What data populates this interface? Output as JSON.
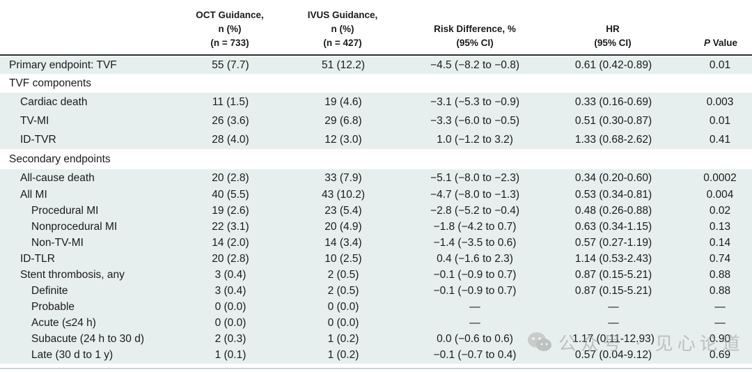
{
  "header": {
    "oct": [
      "OCT Guidance,",
      "n (%)",
      "(n = 733)"
    ],
    "ivus": [
      "IVUS Guidance,",
      "n (%)",
      "(n = 427)"
    ],
    "risk": [
      "Risk Difference, %",
      "(95% CI)"
    ],
    "hr": [
      "HR",
      "(95% CI)"
    ],
    "p": "P Value"
  },
  "rows": [
    {
      "label": "Primary endpoint: TVF",
      "indent": 0,
      "oct": "55 (7.7)",
      "ivus": "51 (12.2)",
      "risk": "−4.5 (−8.2 to −0.8)",
      "hr": "0.61 (0.42-0.89)",
      "p": "0.01",
      "shaded": true
    },
    {
      "label": "TVF components",
      "indent": 0,
      "oct": "",
      "ivus": "",
      "risk": "",
      "hr": "",
      "p": "",
      "shaded": false
    },
    {
      "label": "Cardiac death",
      "indent": 1,
      "oct": "11 (1.5)",
      "ivus": "19 (4.6)",
      "risk": "−3.1 (−5.3 to −0.9)",
      "hr": "0.33 (0.16-0.69)",
      "p": "0.003",
      "shaded": true
    },
    {
      "label": "TV-MI",
      "indent": 1,
      "oct": "26 (3.6)",
      "ivus": "29 (6.8)",
      "risk": "−3.3 (−6.0 to −0.5)",
      "hr": "0.51 (0.30-0.87)",
      "p": "0.01",
      "shaded": true
    },
    {
      "label": "ID-TVR",
      "indent": 1,
      "oct": "28 (4.0)",
      "ivus": "12 (3.0)",
      "risk": "1.0 (−1.2 to 3.2)",
      "hr": "1.33 (0.68-2.62)",
      "p": "0.41",
      "shaded": true
    },
    {
      "label": "Secondary endpoints",
      "indent": 0,
      "oct": "",
      "ivus": "",
      "risk": "",
      "hr": "",
      "p": "",
      "shaded": false
    },
    {
      "label": "All-cause death",
      "indent": 1,
      "oct": "20 (2.8)",
      "ivus": "33 (7.9)",
      "risk": "−5.1 (−8.0 to −2.3)",
      "hr": "0.34 (0.20-0.60)",
      "p": "0.0002",
      "shaded": true
    },
    {
      "label": "All MI",
      "indent": 1,
      "oct": "40 (5.5)",
      "ivus": "43 (10.2)",
      "risk": "−4.7 (−8.0 to −1.3)",
      "hr": "0.53 (0.34-0.81)",
      "p": "0.004",
      "shaded": true
    },
    {
      "label": "Procedural MI",
      "indent": 2,
      "oct": "19 (2.6)",
      "ivus": "23 (5.4)",
      "risk": "−2.8 (−5.2 to −0.4)",
      "hr": "0.48 (0.26-0.88)",
      "p": "0.02",
      "shaded": true
    },
    {
      "label": "Nonprocedural MI",
      "indent": 2,
      "oct": "22 (3.1)",
      "ivus": "20 (4.9)",
      "risk": "−1.8 (−4.2 to 0.7)",
      "hr": "0.63 (0.34-1.15)",
      "p": "0.13",
      "shaded": true
    },
    {
      "label": "Non-TV-MI",
      "indent": 2,
      "oct": "14 (2.0)",
      "ivus": "14 (3.4)",
      "risk": "−1.4 (−3.5 to 0.6)",
      "hr": "0.57 (0.27-1.19)",
      "p": "0.14",
      "shaded": true
    },
    {
      "label": "ID-TLR",
      "indent": 1,
      "oct": "20 (2.8)",
      "ivus": "10 (2.5)",
      "risk": "0.4 (−1.6 to 2.3)",
      "hr": "1.14 (0.53-2.43)",
      "p": "0.74",
      "shaded": true
    },
    {
      "label": "Stent thrombosis, any",
      "indent": 1,
      "oct": "3 (0.4)",
      "ivus": "2 (0.5)",
      "risk": "−0.1 (−0.9 to 0.7)",
      "hr": "0.87 (0.15-5.21)",
      "p": "0.88",
      "shaded": true
    },
    {
      "label": "Definite",
      "indent": 2,
      "oct": "3 (0.4)",
      "ivus": "2 (0.5)",
      "risk": "−0.1 (−0.9 to 0.7)",
      "hr": "0.87 (0.15-5.21)",
      "p": "0.88",
      "shaded": true
    },
    {
      "label": "Probable",
      "indent": 2,
      "oct": "0 (0.0)",
      "ivus": "0 (0.0)",
      "risk": "—",
      "hr": "—",
      "p": "—",
      "shaded": true
    },
    {
      "label": "Acute (≤24 h)",
      "indent": 2,
      "oct": "0 (0.0)",
      "ivus": "0 (0.0)",
      "risk": "—",
      "hr": "—",
      "p": "—",
      "shaded": true
    },
    {
      "label": "Subacute (24 h to 30 d)",
      "indent": 2,
      "oct": "2 (0.3)",
      "ivus": "1 (0.2)",
      "risk": "0.0 (−0.6 to 0.6)",
      "hr": "1.17 (0.11-12.93)",
      "p": "0.90",
      "shaded": true
    },
    {
      "label": "Late (30 d to 1 y)",
      "indent": 2,
      "oct": "1 (0.1)",
      "ivus": "1 (0.2)",
      "risk": "−0.1 (−0.7 to 0.4)",
      "hr": "0.57 (0.04-9.12)",
      "p": "0.69",
      "shaded": true
    }
  ],
  "watermark": "公众号 · 见心论道",
  "colors": {
    "shade": "#e6efee",
    "rule": "#2c2c2c",
    "text": "#1a1a1a"
  }
}
